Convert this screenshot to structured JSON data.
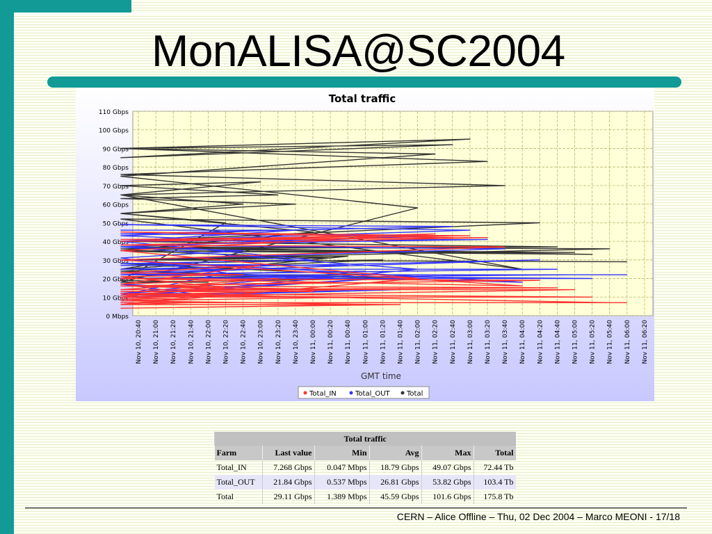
{
  "slide": {
    "title": "MonALISA@SC2004",
    "footer": "CERN – Alice Offline – Thu, 02 Dec 2004 – Marco MEONI - 17/18",
    "accent_color": "#119a96"
  },
  "chart_data": {
    "type": "line",
    "title": "Total traffic",
    "xlabel": "GMT time",
    "ylabel": "",
    "y_unit": "Gbps",
    "ylim": [
      0,
      110
    ],
    "y_ticks": [
      0,
      10,
      20,
      30,
      40,
      50,
      60,
      70,
      80,
      90,
      100,
      110
    ],
    "y_tick_labels": [
      "0 Mbps",
      "10 Gbps",
      "20 Gbps",
      "30 Gbps",
      "40 Gbps",
      "50 Gbps",
      "60 Gbps",
      "70 Gbps",
      "80 Gbps",
      "90 Gbps",
      "100 Gbps",
      "110 Gbps"
    ],
    "x_tick_labels": [
      "Nov 10, 20:40",
      "Nov 10, 21:00",
      "Nov 10, 21:20",
      "Nov 10, 21:40",
      "Nov 10, 22:00",
      "Nov 10, 22:20",
      "Nov 10, 22:40",
      "Nov 10, 23:00",
      "Nov 10, 23:20",
      "Nov 10, 23:40",
      "Nov 11, 00:00",
      "Nov 11, 00:20",
      "Nov 11, 00:40",
      "Nov 11, 01:00",
      "Nov 11, 01:20",
      "Nov 11, 01:40",
      "Nov 11, 02:00",
      "Nov 11, 02:20",
      "Nov 11, 02:40",
      "Nov 11, 03:00",
      "Nov 11, 03:20",
      "Nov 11, 03:40",
      "Nov 11, 04:00",
      "Nov 11, 04:20",
      "Nov 11, 04:40",
      "Nov 11, 05:00",
      "Nov 11, 05:20",
      "Nov 11, 05:40",
      "Nov 11, 06:00",
      "Nov 11, 06:20"
    ],
    "grid": true,
    "legend_position": "bottom-center",
    "x": [
      "Nov 10, 21:00",
      "Nov 10, 21:10",
      "Nov 10, 21:20",
      "Nov 10, 21:30",
      "Nov 10, 21:40",
      "Nov 10, 21:50",
      "Nov 10, 22:00",
      "Nov 10, 22:10",
      "Nov 10, 22:20",
      "Nov 10, 22:30",
      "Nov 10, 22:40",
      "Nov 10, 22:50",
      "Nov 10, 23:00",
      "Nov 10, 23:10",
      "Nov 10, 23:20",
      "Nov 10, 23:30",
      "Nov 10, 23:40",
      "Nov 10, 23:50",
      "Nov 11, 00:00",
      "Nov 11, 00:10",
      "Nov 11, 00:20",
      "Nov 11, 00:30",
      "Nov 11, 00:40",
      "Nov 11, 00:50",
      "Nov 11, 01:00",
      "Nov 11, 01:10",
      "Nov 11, 01:20",
      "Nov 11, 01:30",
      "Nov 11, 01:40",
      "Nov 11, 01:50",
      "Nov 11, 02:00",
      "Nov 11, 02:10",
      "Nov 11, 02:20",
      "Nov 11, 02:30",
      "Nov 11, 02:40",
      "Nov 11, 02:50",
      "Nov 11, 03:00",
      "Nov 11, 03:10",
      "Nov 11, 03:20",
      "Nov 11, 03:30",
      "Nov 11, 03:40",
      "Nov 11, 03:50",
      "Nov 11, 04:00",
      "Nov 11, 04:10",
      "Nov 11, 04:20",
      "Nov 11, 04:30",
      "Nov 11, 04:40",
      "Nov 11, 04:50",
      "Nov 11, 05:00",
      "Nov 11, 05:10",
      "Nov 11, 05:20",
      "Nov 11, 05:30",
      "Nov 11, 05:40",
      "Nov 11, 05:50",
      "Nov 11, 06:00"
    ],
    "series": [
      {
        "name": "Total_IN",
        "color": "#ff3333",
        "values": [
          12,
          10,
          9,
          9,
          7,
          6,
          11,
          11,
          15,
          21,
          22,
          23,
          27,
          17,
          20,
          14,
          14,
          13,
          13,
          16,
          18,
          16,
          14,
          11,
          10,
          8,
          6,
          4,
          6,
          6,
          20,
          35,
          44,
          40,
          42,
          45,
          43,
          41,
          42,
          38,
          37,
          30,
          16,
          20,
          19,
          16,
          15,
          14,
          14,
          10,
          10,
          12,
          7,
          7,
          7
        ]
      },
      {
        "name": "Total_OUT",
        "color": "#3333ff",
        "values": [
          16,
          17,
          18,
          17,
          12,
          12,
          11,
          11,
          23,
          31,
          35,
          37,
          40,
          43,
          46,
          46,
          46,
          40,
          30,
          28,
          27,
          27,
          27,
          22,
          24,
          12,
          20,
          11,
          14,
          10,
          25,
          37,
          43,
          44,
          48,
          49,
          46,
          40,
          41,
          38,
          36,
          30,
          18,
          23,
          30,
          25,
          25,
          22,
          22,
          20,
          20,
          22,
          22,
          22,
          22
        ]
      },
      {
        "name": "Total",
        "color": "#333333",
        "values": [
          28,
          25,
          27,
          28,
          27,
          18,
          18,
          19,
          50,
          55,
          60,
          65,
          72,
          70,
          65,
          63,
          60,
          55,
          45,
          35,
          31,
          30,
          32,
          20,
          22,
          28,
          30,
          24,
          20,
          18,
          58,
          75,
          87,
          90,
          92,
          85,
          95,
          90,
          83,
          76,
          70,
          65,
          25,
          52,
          50,
          40,
          37,
          36,
          34,
          35,
          33,
          37,
          36,
          30,
          29
        ]
      }
    ]
  },
  "table": {
    "caption": "Total traffic",
    "headers": [
      "Farm",
      "Last value",
      "Min",
      "Avg",
      "Max",
      "Total"
    ],
    "rows": [
      [
        "Total_IN",
        "7.268 Gbps",
        "0.047 Mbps",
        "18.79 Gbps",
        "49.07 Gbps",
        "72.44 Tb"
      ],
      [
        "Total_OUT",
        "21.84 Gbps",
        "0.537 Mbps",
        "26.81 Gbps",
        "53.82 Gbps",
        "103.4 Tb"
      ],
      [
        "Total",
        "29.11 Gbps",
        "1.389 Mbps",
        "45.59 Gbps",
        "101.6 Gbps",
        "175.8 Tb"
      ]
    ]
  }
}
